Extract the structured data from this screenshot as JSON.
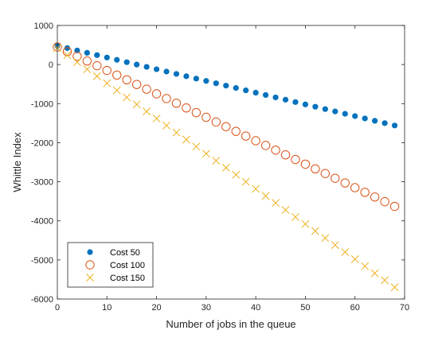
{
  "chart_data": {
    "type": "scatter",
    "title": "",
    "xlabel": "Number of jobs in the queue",
    "ylabel": "Whittle Index",
    "xlim": [
      0,
      70
    ],
    "ylim": [
      -6000,
      1000
    ],
    "xticks": [
      0,
      10,
      20,
      30,
      40,
      50,
      60,
      70
    ],
    "yticks": [
      -6000,
      -5000,
      -4000,
      -3000,
      -2000,
      -1000,
      0,
      1000
    ],
    "grid": false,
    "legend_position": "bottom-left",
    "x": [
      0,
      2,
      4,
      6,
      8,
      10,
      12,
      14,
      16,
      18,
      20,
      22,
      24,
      26,
      28,
      30,
      32,
      34,
      36,
      38,
      40,
      42,
      44,
      46,
      48,
      50,
      52,
      54,
      56,
      58,
      60,
      62,
      64,
      66,
      68
    ],
    "series": [
      {
        "name": "Cost 50",
        "marker": "filled-circle",
        "color": "#0072BD",
        "start": 480,
        "step": -60,
        "values": [
          480,
          420,
          360,
          300,
          240,
          180,
          120,
          60,
          0,
          -60,
          -120,
          -180,
          -240,
          -300,
          -360,
          -420,
          -480,
          -540,
          -600,
          -660,
          -720,
          -780,
          -840,
          -900,
          -960,
          -1020,
          -1080,
          -1140,
          -1200,
          -1260,
          -1320,
          -1380,
          -1440,
          -1500,
          -1560
        ]
      },
      {
        "name": "Cost 100",
        "marker": "open-circle",
        "color": "#D95319",
        "values": [
          450,
          330,
          210,
          90,
          -30,
          -150,
          -270,
          -390,
          -510,
          -630,
          -750,
          -870,
          -990,
          -1110,
          -1230,
          -1350,
          -1470,
          -1590,
          -1710,
          -1830,
          -1950,
          -2070,
          -2190,
          -2310,
          -2430,
          -2550,
          -2670,
          -2790,
          -2910,
          -3030,
          -3150,
          -3270,
          -3390,
          -3510,
          -3630
        ]
      },
      {
        "name": "Cost 150",
        "marker": "cross",
        "color": "#EDB120",
        "values": [
          420,
          240,
          60,
          -120,
          -300,
          -480,
          -660,
          -840,
          -1020,
          -1200,
          -1380,
          -1560,
          -1740,
          -1920,
          -2100,
          -2280,
          -2460,
          -2640,
          -2820,
          -3000,
          -3180,
          -3360,
          -3540,
          -3720,
          -3900,
          -4080,
          -4260,
          -4440,
          -4620,
          -4800,
          -4980,
          -5160,
          -5340,
          -5520,
          -5700
        ]
      }
    ]
  }
}
